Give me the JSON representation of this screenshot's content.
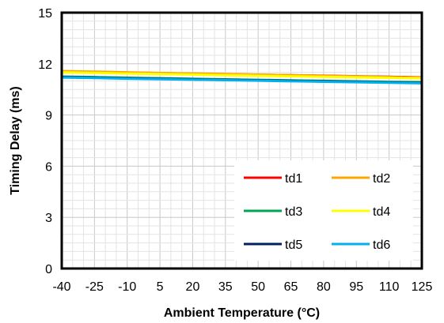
{
  "chart_data": {
    "type": "line",
    "title": "",
    "xlabel": "Ambient Temperature (°C)",
    "ylabel": "Timing Delay (ms)",
    "xlim": [
      -40,
      125
    ],
    "ylim": [
      0,
      15
    ],
    "x_ticks": [
      "-40",
      "-25",
      "-10",
      "5",
      "20",
      "35",
      "50",
      "65",
      "80",
      "95",
      "110",
      "125"
    ],
    "y_ticks": [
      "0",
      "3",
      "6",
      "9",
      "12",
      "15"
    ],
    "grid": true,
    "legend_position": "bottom-right",
    "x": [
      -40,
      -25,
      -10,
      5,
      20,
      35,
      50,
      65,
      80,
      95,
      110,
      125
    ],
    "series": [
      {
        "name": "td1",
        "color": "#ff0000",
        "values": [
          11.55,
          11.52,
          11.48,
          11.45,
          11.42,
          11.39,
          11.36,
          11.33,
          11.3,
          11.27,
          11.24,
          11.2
        ]
      },
      {
        "name": "td2",
        "color": "#ffa500",
        "values": [
          11.57,
          11.54,
          11.5,
          11.46,
          11.43,
          11.4,
          11.36,
          11.33,
          11.29,
          11.26,
          11.22,
          11.18
        ]
      },
      {
        "name": "td3",
        "color": "#00a651",
        "values": [
          11.25,
          11.22,
          11.18,
          11.15,
          11.12,
          11.09,
          11.06,
          11.03,
          11.0,
          10.97,
          10.94,
          10.92
        ]
      },
      {
        "name": "td4",
        "color": "#ffff00",
        "values": [
          11.5,
          11.47,
          11.43,
          11.4,
          11.37,
          11.33,
          11.3,
          11.27,
          11.24,
          11.21,
          11.18,
          11.15
        ]
      },
      {
        "name": "td5",
        "color": "#002060",
        "values": [
          11.22,
          11.19,
          11.15,
          11.12,
          11.09,
          11.06,
          11.03,
          11.0,
          10.97,
          10.94,
          10.91,
          10.88
        ]
      },
      {
        "name": "td6",
        "color": "#00b0f0",
        "values": [
          11.2,
          11.17,
          11.13,
          11.1,
          11.07,
          11.04,
          11.01,
          10.98,
          10.95,
          10.92,
          10.89,
          10.86
        ]
      }
    ]
  }
}
